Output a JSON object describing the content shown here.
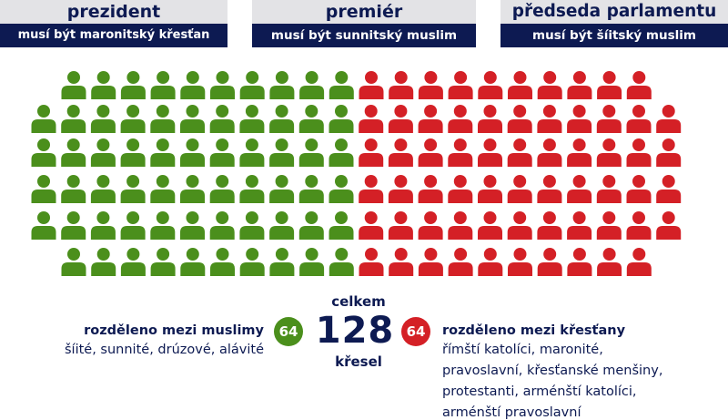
{
  "headers": [
    {
      "title": "prezident",
      "subtitle": "musí být maronitský křesťan"
    },
    {
      "title": "premiér",
      "subtitle": "musí být sunnitský muslim"
    },
    {
      "title": "předseda parlamentu",
      "subtitle": "musí být šíitský muslim"
    }
  ],
  "seats": {
    "total": "128",
    "muslim": 64,
    "christian": 64,
    "colors": {
      "muslim": "#4b8f1c",
      "christian": "#d42026"
    }
  },
  "summary": {
    "total_label": "celkem",
    "total": "128",
    "seats_label": "křesel",
    "muslim_count": "64",
    "christian_count": "64",
    "muslim_title": "rozděleno mezi muslimy",
    "muslim_groups": "šíité, sunnité, drúzové, alávité",
    "christian_title": "rozděleno mezi křesťany",
    "christian_groups": [
      "římští katolíci, maronité,",
      "pravoslavní, křesťanské menšiny,",
      "protestanti, arménští katolíci,",
      "arménští pravoslavní"
    ]
  }
}
